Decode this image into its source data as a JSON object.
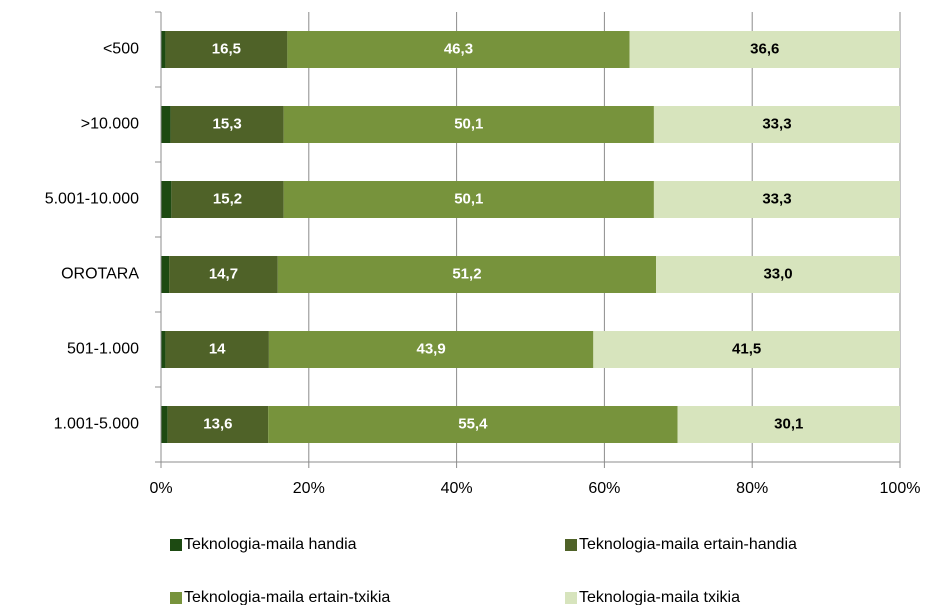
{
  "chart_data": {
    "type": "stacked_bar_horizontal",
    "categories": [
      "<500",
      ">10.000",
      "5.001-10.000",
      "OROTARA",
      "501-1.000",
      "1.001-5.000"
    ],
    "series": [
      {
        "name": "Teknologia-maila handia",
        "color": "#1d4a12",
        "values": [
          0.6,
          1.3,
          1.4,
          1.1,
          0.6,
          0.9
        ]
      },
      {
        "name": "Teknologia-maila ertain-handia",
        "color": "#4f6228",
        "values": [
          16.5,
          15.3,
          15.2,
          14.7,
          14,
          13.6
        ],
        "value_labels": [
          "16,5",
          "15,3",
          "15,2",
          "14,7",
          "14",
          "13,6"
        ]
      },
      {
        "name": "Teknologia-maila ertain-txikia",
        "color": "#77933c",
        "values": [
          46.3,
          50.1,
          50.1,
          51.2,
          43.9,
          55.4
        ],
        "value_labels": [
          "46,3",
          "50,1",
          "50,1",
          "51,2",
          "43,9",
          "55,4"
        ]
      },
      {
        "name": "Teknologia-maila txikia",
        "color": "#d7e4bd",
        "values": [
          36.6,
          33.3,
          33.3,
          33.0,
          41.5,
          30.1
        ],
        "value_labels": [
          "36,6",
          "33,3",
          "33,3",
          "33,0",
          "41,5",
          "30,1"
        ]
      }
    ],
    "xlim": [
      0,
      100
    ],
    "xticks": [
      {
        "value": 0,
        "label": "0%"
      },
      {
        "value": 20,
        "label": "20%"
      },
      {
        "value": 40,
        "label": "40%"
      },
      {
        "value": 60,
        "label": "60%"
      },
      {
        "value": 80,
        "label": "80%"
      },
      {
        "value": 100,
        "label": "100%"
      }
    ],
    "grid": true
  }
}
